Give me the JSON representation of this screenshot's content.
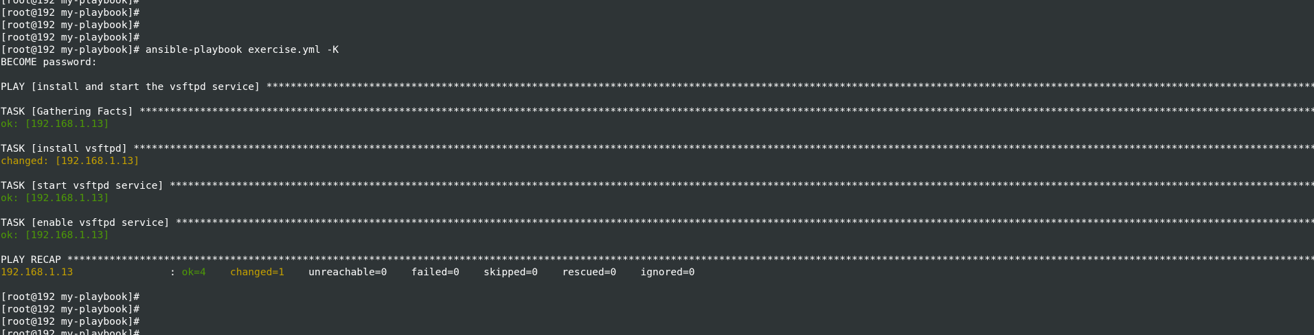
{
  "terminal": {
    "prompt": "[root@192 my-playbook]#",
    "command": " ansible-playbook exercise.yml -K",
    "become_prompt": "BECOME password:",
    "play_header": "PLAY [install and start the vsftpd service] ",
    "tasks": [
      {
        "header": "TASK [Gathering Facts] ",
        "result": "ok: [192.168.1.13]",
        "status": "ok"
      },
      {
        "header": "TASK [install vsftpd] ",
        "result": "changed: [192.168.1.13]",
        "status": "changed"
      },
      {
        "header": "TASK [start vsftpd service] ",
        "result": "ok: [192.168.1.13]",
        "status": "ok"
      },
      {
        "header": "TASK [enable vsftpd service] ",
        "result": "ok: [192.168.1.13]",
        "status": "ok"
      }
    ],
    "recap_header": "PLAY RECAP ",
    "recap": {
      "host": "192.168.1.13",
      "separator": "                : ",
      "ok": "ok=4",
      "gap1": "    ",
      "changed": "changed=1",
      "gap2": "    ",
      "unreachable": "unreachable=0",
      "gap3": "    ",
      "failed": "failed=0",
      "gap4": "    ",
      "skipped": "skipped=0",
      "gap5": "    ",
      "rescued": "rescued=0",
      "gap6": "    ",
      "ignored": "ignored=0"
    },
    "colors": {
      "background": "#2e3436",
      "text": "#ffffff",
      "ok": "#4e9a06",
      "changed": "#c4a000"
    }
  }
}
